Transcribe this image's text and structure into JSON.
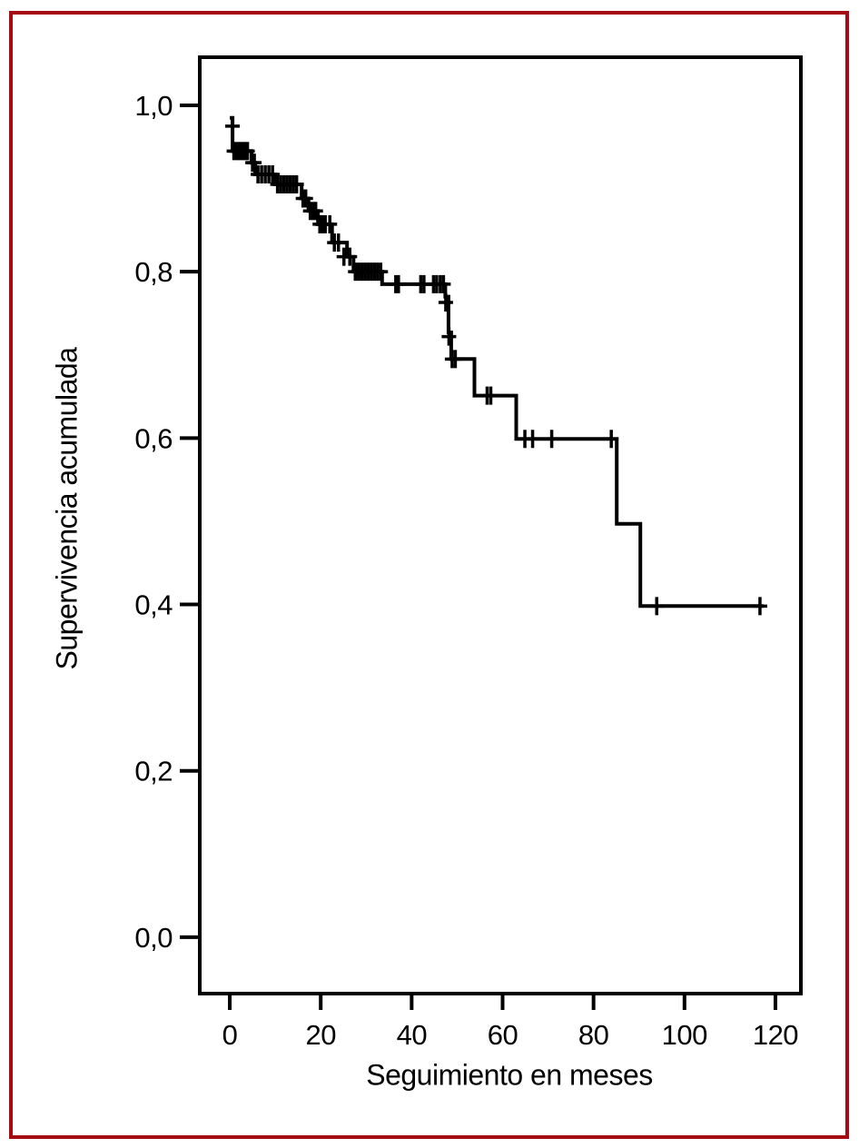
{
  "colors": {
    "page_border": "#A60A12",
    "curve": "#000000",
    "axis": "#000000",
    "background": "#FFFFFF"
  },
  "chart_data": {
    "type": "line",
    "subtype": "kaplan-meier-step-function",
    "title": "",
    "xlabel": "Seguimiento en meses",
    "ylabel": "Supervivencia acumulada",
    "x_ticks": [
      0,
      20,
      40,
      60,
      80,
      100,
      120
    ],
    "y_tick_values": [
      0.0,
      0.2,
      0.4,
      0.6,
      0.8,
      1.0
    ],
    "y_tick_labels": [
      "0,0",
      "0,2",
      "0,4",
      "0,6",
      "0,8",
      "1,0"
    ],
    "xlim": [
      -7,
      126
    ],
    "ylim": [
      -0.07,
      1.06
    ],
    "grid": false,
    "legend": "none",
    "series": [
      {
        "name": "supervivencia-acumulada",
        "points": [
          [
            0.0,
            0.985
          ],
          [
            0.6,
            0.945
          ],
          [
            4.8,
            0.931
          ],
          [
            5.6,
            0.917
          ],
          [
            10.0,
            0.905
          ],
          [
            15.8,
            0.888
          ],
          [
            17.3,
            0.873
          ],
          [
            19.4,
            0.857
          ],
          [
            22.5,
            0.835
          ],
          [
            25.8,
            0.818
          ],
          [
            27.2,
            0.8
          ],
          [
            33.5,
            0.785
          ],
          [
            47.4,
            0.77
          ],
          [
            48.1,
            0.727
          ],
          [
            48.7,
            0.695
          ],
          [
            53.8,
            0.651
          ],
          [
            63.0,
            0.599
          ],
          [
            85.1,
            0.497
          ],
          [
            90.3,
            0.398
          ]
        ],
        "end_x": 117.4
      }
    ],
    "censor_marks": [
      [
        0.6,
        0.975
      ],
      [
        0.9,
        0.945
      ],
      [
        1.4,
        0.945
      ],
      [
        1.9,
        0.945
      ],
      [
        2.4,
        0.945
      ],
      [
        2.9,
        0.945
      ],
      [
        3.4,
        0.945
      ],
      [
        3.9,
        0.945
      ],
      [
        5.0,
        0.931
      ],
      [
        5.4,
        0.931
      ],
      [
        6.2,
        0.917
      ],
      [
        7.0,
        0.917
      ],
      [
        7.8,
        0.917
      ],
      [
        8.6,
        0.917
      ],
      [
        9.4,
        0.917
      ],
      [
        10.5,
        0.905
      ],
      [
        11.2,
        0.905
      ],
      [
        11.9,
        0.905
      ],
      [
        12.6,
        0.905
      ],
      [
        13.3,
        0.905
      ],
      [
        14.0,
        0.905
      ],
      [
        14.7,
        0.905
      ],
      [
        16.1,
        0.888
      ],
      [
        16.7,
        0.888
      ],
      [
        17.7,
        0.873
      ],
      [
        18.3,
        0.873
      ],
      [
        18.9,
        0.873
      ],
      [
        19.8,
        0.857
      ],
      [
        20.4,
        0.857
      ],
      [
        21.0,
        0.857
      ],
      [
        22.0,
        0.857
      ],
      [
        23.0,
        0.835
      ],
      [
        23.9,
        0.835
      ],
      [
        25.1,
        0.818
      ],
      [
        26.4,
        0.818
      ],
      [
        27.6,
        0.8
      ],
      [
        28.3,
        0.8
      ],
      [
        29.0,
        0.8
      ],
      [
        29.7,
        0.8
      ],
      [
        30.4,
        0.8
      ],
      [
        31.1,
        0.8
      ],
      [
        31.8,
        0.8
      ],
      [
        32.5,
        0.8
      ],
      [
        33.2,
        0.8
      ],
      [
        36.5,
        0.785
      ],
      [
        37.1,
        0.785
      ],
      [
        42.0,
        0.785
      ],
      [
        42.7,
        0.785
      ],
      [
        44.8,
        0.785
      ],
      [
        45.5,
        0.785
      ],
      [
        46.3,
        0.785
      ],
      [
        47.0,
        0.785
      ],
      [
        47.5,
        0.763
      ],
      [
        48.2,
        0.722
      ],
      [
        48.9,
        0.695
      ],
      [
        49.6,
        0.695
      ],
      [
        56.6,
        0.651
      ],
      [
        57.4,
        0.651
      ],
      [
        64.9,
        0.599
      ],
      [
        66.6,
        0.599
      ],
      [
        70.8,
        0.599
      ],
      [
        83.9,
        0.599
      ],
      [
        93.9,
        0.398
      ],
      [
        116.6,
        0.398
      ]
    ]
  }
}
